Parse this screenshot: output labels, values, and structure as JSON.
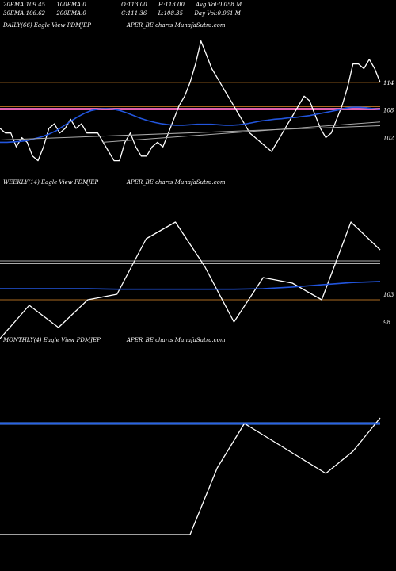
{
  "header": {
    "row1": [
      {
        "label": "20EMA:",
        "value": "109.45"
      },
      {
        "label": "100EMA:",
        "value": "0"
      },
      {
        "label": "O:",
        "value": "113.00"
      },
      {
        "label": "H:",
        "value": "113.00"
      },
      {
        "label": "Avg Vol:",
        "value": "0.058  M"
      }
    ],
    "row2": [
      {
        "label": "30EMA:",
        "value": "106.62"
      },
      {
        "label": "200EMA:",
        "value": "0"
      },
      {
        "label": "C:",
        "value": "111.36"
      },
      {
        "label": "L:",
        "value": "108.35"
      },
      {
        "label": "Day Vol:",
        "value": "0.061  M"
      }
    ]
  },
  "colors": {
    "price": "#ffffff",
    "ema": "#2255dd",
    "ref_line": "#aa6a20",
    "gray_line": "#aaaaaa",
    "pink_line": "#e060b0",
    "blue_band": "#4488ff"
  },
  "chart_data": [
    {
      "type": "line",
      "title": "DAILY(66) Eagle  View  PDMJEP",
      "subtitle": "APER_BE charts MunafaSutra.com",
      "yticks": [
        114,
        108,
        102
      ],
      "ylim": [
        94,
        125
      ],
      "series": [
        {
          "role": "price",
          "values": [
            104,
            103,
            103,
            100,
            102,
            101,
            98,
            97,
            100,
            104,
            105,
            103,
            104,
            106,
            104,
            105,
            103,
            103,
            103,
            101,
            99,
            97,
            97,
            101,
            103,
            100,
            98,
            98,
            100,
            101,
            100,
            103,
            106,
            109,
            111,
            114,
            118,
            123,
            120,
            117,
            115,
            113,
            111,
            109,
            107,
            105,
            103,
            102,
            101,
            100,
            99,
            101,
            103,
            105,
            107,
            109,
            111,
            110,
            107,
            104,
            102,
            103,
            106,
            109,
            113,
            118,
            118,
            117,
            119,
            117,
            114
          ]
        },
        {
          "role": "ema",
          "values": [
            101,
            101,
            101.1,
            101.2,
            101.4,
            101.8,
            102.2,
            102.8,
            103.5,
            104.5,
            105.5,
            106.5,
            107.3,
            107.9,
            108.2,
            108.3,
            108.2,
            107.9,
            107.4,
            106.8,
            106.2,
            105.7,
            105.3,
            105.0,
            104.8,
            104.7,
            104.7,
            104.8,
            104.9,
            104.9,
            104.9,
            104.8,
            104.7,
            104.7,
            104.8,
            105.0,
            105.3,
            105.6,
            105.8,
            106.0,
            106.1,
            106.3,
            106.4,
            106.6,
            106.8,
            107.1,
            107.4,
            107.7,
            108.0,
            108.4,
            108.6,
            108.6,
            108.5,
            108.3,
            108.1
          ]
        },
        {
          "role": "gray-a",
          "values": [
            101.5,
            104.6
          ]
        },
        {
          "role": "gray-b",
          "values": [
            101.0,
            105.4
          ]
        }
      ],
      "ref_lines": [
        {
          "y": 114,
          "style": "orange"
        },
        {
          "y": 108.2,
          "style": "pink"
        },
        {
          "y": 101.5,
          "style": "orange"
        }
      ]
    },
    {
      "type": "line",
      "title": "WEEKLY(14) Eagle  View  PDMJEP",
      "subtitle": "APER_BE charts MunafaSutra.com",
      "yticks": [
        103,
        98
      ],
      "ylim": [
        96,
        122
      ],
      "series": [
        {
          "role": "price",
          "values": [
            95,
            101,
            97,
            102,
            103,
            113,
            116,
            108,
            98,
            106,
            105,
            102,
            116,
            111
          ]
        },
        {
          "role": "ema",
          "values": [
            104.0,
            104.0,
            104.0,
            104.0,
            103.9,
            103.9,
            103.9,
            103.9,
            103.9,
            104.0,
            104.3,
            104.7,
            105.1,
            105.3
          ]
        }
      ],
      "ref_lines": [
        {
          "y": 109.0,
          "style": "gray"
        },
        {
          "y": 108.5,
          "style": "gray"
        },
        {
          "y": 102.0,
          "style": "orange"
        }
      ]
    },
    {
      "type": "line",
      "title": "MONTHLY(4) Eagle  View  PDMJEP",
      "subtitle": "APER_BE charts MunafaSutra.com",
      "yticks": [],
      "ylim": [
        85,
        125
      ],
      "series": [
        {
          "role": "price",
          "values": [
            91,
            91,
            91,
            91,
            91,
            91,
            91,
            91,
            103,
            111,
            108,
            105,
            102,
            106,
            112
          ]
        },
        {
          "role": "ema",
          "values": [
            111,
            111
          ]
        }
      ],
      "ref_lines": [
        {
          "y": 111,
          "style": "blue-band"
        }
      ]
    }
  ]
}
